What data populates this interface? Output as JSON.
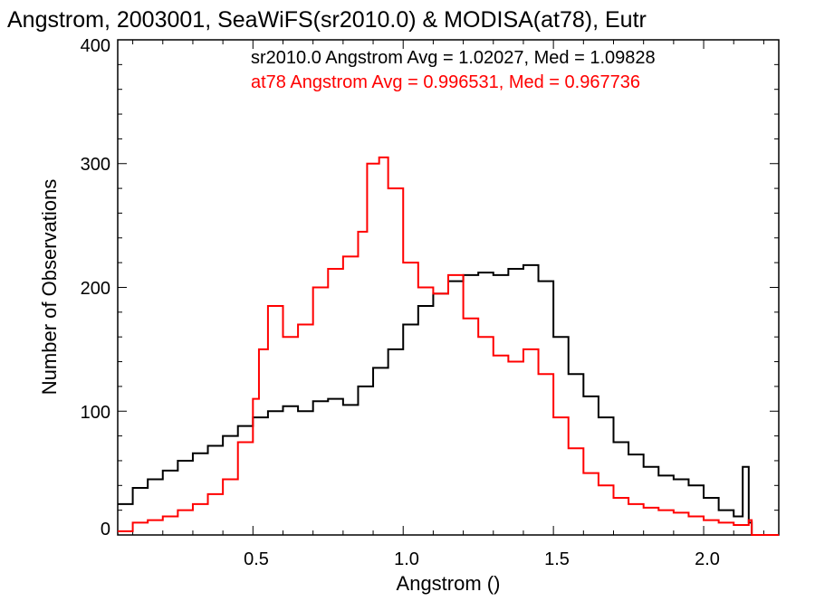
{
  "chart_data": {
    "type": "histogram",
    "title": "Angstrom, 2003001, SeaWiFS(sr2010.0) & MODISA(at78), Eutr",
    "xlabel": "Angstrom ()",
    "ylabel": "Number of Observations",
    "xlim": [
      0.05,
      2.25
    ],
    "ylim": [
      0,
      400
    ],
    "xticks": [
      "0.5",
      "1.0",
      "1.5",
      "2.0"
    ],
    "yticks": [
      "0",
      "100",
      "200",
      "300",
      "400"
    ],
    "xtick_values": [
      0.5,
      1.0,
      1.5,
      2.0
    ],
    "ytick_values": [
      0,
      100,
      200,
      300,
      400
    ],
    "grid": false,
    "annotations": [
      {
        "text": "sr2010.0 Angstrom Avg = 1.02027, Med = 1.09828",
        "color": "#000000"
      },
      {
        "text": "at78 Angstrom Avg = 0.996531, Med = 0.967736",
        "color": "#ff0000"
      }
    ],
    "series": [
      {
        "name": "sr2010.0",
        "color": "#000000",
        "x": [
          0.05,
          0.1,
          0.15,
          0.2,
          0.25,
          0.3,
          0.35,
          0.4,
          0.45,
          0.5,
          0.55,
          0.6,
          0.65,
          0.7,
          0.75,
          0.8,
          0.85,
          0.9,
          0.95,
          1.0,
          1.05,
          1.1,
          1.15,
          1.2,
          1.25,
          1.3,
          1.35,
          1.4,
          1.45,
          1.5,
          1.55,
          1.6,
          1.65,
          1.7,
          1.75,
          1.8,
          1.85,
          1.9,
          1.95,
          2.0,
          2.05,
          2.1,
          2.13,
          2.15,
          2.16,
          2.25
        ],
        "y": [
          25,
          38,
          45,
          52,
          60,
          66,
          72,
          80,
          88,
          95,
          100,
          104,
          100,
          108,
          110,
          105,
          120,
          135,
          150,
          170,
          185,
          195,
          205,
          210,
          212,
          210,
          215,
          218,
          205,
          160,
          130,
          112,
          95,
          75,
          65,
          55,
          48,
          45,
          40,
          30,
          20,
          15,
          55,
          10,
          0,
          0
        ]
      },
      {
        "name": "at78",
        "color": "#ff0000",
        "x": [
          0.05,
          0.1,
          0.15,
          0.2,
          0.25,
          0.3,
          0.35,
          0.4,
          0.45,
          0.5,
          0.52,
          0.55,
          0.6,
          0.65,
          0.7,
          0.75,
          0.8,
          0.85,
          0.88,
          0.92,
          0.95,
          1.0,
          1.05,
          1.1,
          1.15,
          1.2,
          1.25,
          1.3,
          1.35,
          1.4,
          1.45,
          1.5,
          1.55,
          1.6,
          1.65,
          1.7,
          1.75,
          1.8,
          1.85,
          1.9,
          1.95,
          2.0,
          2.05,
          2.1,
          2.15,
          2.16,
          2.25
        ],
        "y": [
          3,
          10,
          12,
          15,
          20,
          25,
          33,
          45,
          75,
          110,
          150,
          185,
          160,
          170,
          200,
          215,
          225,
          245,
          300,
          305,
          280,
          220,
          200,
          195,
          210,
          175,
          160,
          145,
          140,
          150,
          130,
          95,
          70,
          50,
          40,
          30,
          25,
          22,
          20,
          18,
          15,
          12,
          10,
          8,
          12,
          0,
          0
        ]
      }
    ]
  }
}
